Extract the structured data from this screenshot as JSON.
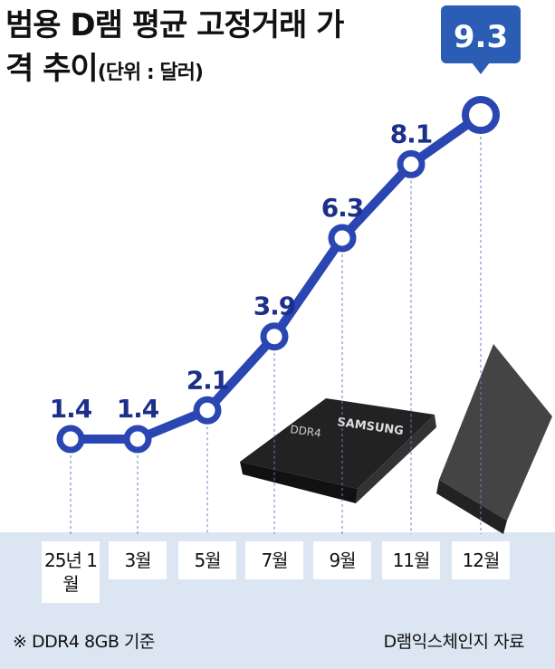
{
  "chart_data": {
    "type": "line",
    "title": "범용 D램 평균 고정거래 가격 추이",
    "unit": "(단위 : 달러)",
    "categories": [
      "25년 1월",
      "3월",
      "5월",
      "7월",
      "9월",
      "11월",
      "12월"
    ],
    "values": [
      1.4,
      1.4,
      2.1,
      3.9,
      6.3,
      8.1,
      9.3
    ],
    "color": "#2a46b3",
    "note": "※ DDR4 8GB 기준",
    "source": "D램익스체인지 자료"
  }
}
